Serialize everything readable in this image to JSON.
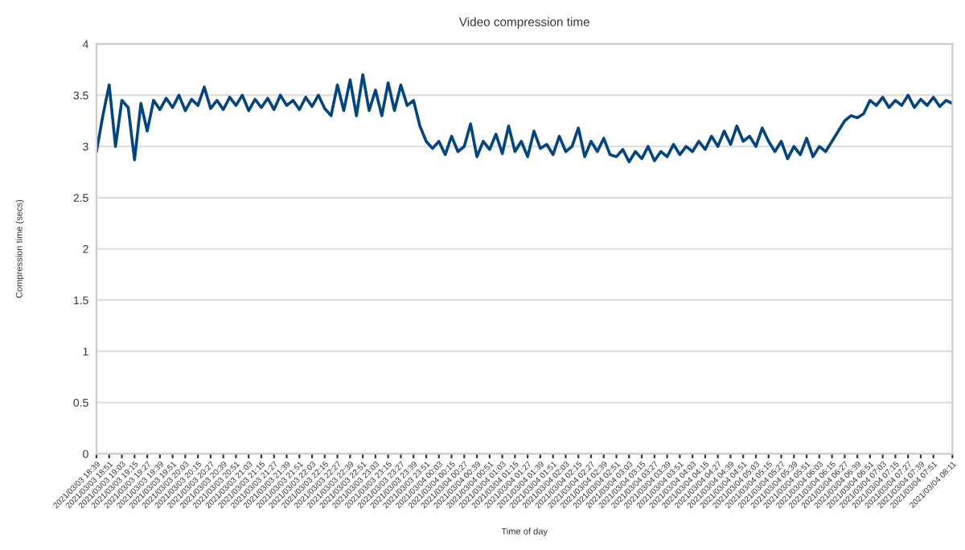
{
  "chart_data": {
    "type": "line",
    "title": "Video compression time",
    "xlabel": "Time of day",
    "ylabel": "Compression time (secs)",
    "ylim": [
      0,
      4
    ],
    "yticks": [
      0,
      0.5,
      1,
      1.5,
      2,
      2.5,
      3,
      3.5,
      4
    ],
    "grid": "y",
    "legend": false,
    "marker": "none",
    "line_style": "solid",
    "categories": [
      "2021/03/03 18:39",
      null,
      "2021/03/03 18:51",
      null,
      "2021/03/03 19:03",
      null,
      "2021/03/03 19:15",
      null,
      "2021/03/03 19:27",
      null,
      "2021/03/03 19:39",
      null,
      "2021/03/03 19:51",
      null,
      "2021/03/03 20:03",
      null,
      "2021/03/03 20:15",
      null,
      "2021/03/03 20:27",
      null,
      "2021/03/03 20:39",
      null,
      "2021/03/03 20:51",
      null,
      "2021/03/03 21:03",
      null,
      "2021/03/03 21:15",
      null,
      "2021/03/03 21:27",
      null,
      "2021/03/03 21:39",
      null,
      "2021/03/03 21:51",
      null,
      "2021/03/03 22:03",
      null,
      "2021/03/03 22:15",
      null,
      "2021/03/03 22:27",
      null,
      "2021/03/03 22:39",
      null,
      "2021/03/03 22:51",
      null,
      "2021/03/03 23:03",
      null,
      "2021/03/03 23:15",
      null,
      "2021/03/03 23:27",
      null,
      "2021/03/03 23:39",
      null,
      "2021/03/03 23:51",
      null,
      "2021/03/04 00:03",
      null,
      "2021/03/04 00:15",
      null,
      "2021/03/04 00:27",
      null,
      "2021/03/04 00:39",
      null,
      "2021/03/04 00:51",
      null,
      "2021/03/04 01:03",
      null,
      "2021/03/04 01:15",
      null,
      "2021/03/04 01:27",
      null,
      "2021/03/04 01:39",
      null,
      "2021/03/04 01:51",
      null,
      "2021/03/04 02:03",
      null,
      "2021/03/04 02:15",
      null,
      "2021/03/04 02:27",
      null,
      "2021/03/04 02:39",
      null,
      "2021/03/04 02:51",
      null,
      "2021/03/04 03:03",
      null,
      "2021/03/04 03:15",
      null,
      "2021/03/04 03:27",
      null,
      "2021/03/04 03:39",
      null,
      "2021/03/04 03:51",
      null,
      "2021/03/04 04:03",
      null,
      "2021/03/04 04:15",
      null,
      "2021/03/04 04:27",
      null,
      "2021/03/04 04:39",
      null,
      "2021/03/04 04:51",
      null,
      "2021/03/04 05:03",
      null,
      "2021/03/04 05:15",
      null,
      "2021/03/04 05:27",
      null,
      "2021/03/04 05:39",
      null,
      "2021/03/04 05:51",
      null,
      "2021/03/04 06:03",
      null,
      "2021/03/04 06:15",
      null,
      "2021/03/04 06:27",
      null,
      "2021/03/04 06:39",
      null,
      "2021/03/04 06:51",
      null,
      "2021/03/04 07:03",
      null,
      "2021/03/04 07:15",
      null,
      "2021/03/04 07:27",
      null,
      "2021/03/04 07:39",
      null,
      "2021/03/04 07:51",
      null,
      null,
      "2021/03/04 08:11"
    ],
    "series": [
      {
        "color": "#004586",
        "values": [
          2.95,
          3.3,
          3.6,
          3.0,
          3.45,
          3.38,
          2.87,
          3.42,
          3.15,
          3.45,
          3.36,
          3.47,
          3.38,
          3.5,
          3.35,
          3.46,
          3.4,
          3.58,
          3.37,
          3.45,
          3.36,
          3.48,
          3.4,
          3.5,
          3.35,
          3.46,
          3.38,
          3.47,
          3.36,
          3.5,
          3.4,
          3.45,
          3.36,
          3.48,
          3.39,
          3.5,
          3.37,
          3.3,
          3.6,
          3.35,
          3.65,
          3.3,
          3.7,
          3.35,
          3.55,
          3.3,
          3.62,
          3.35,
          3.6,
          3.4,
          3.45,
          3.2,
          3.05,
          2.98,
          3.05,
          2.92,
          3.1,
          2.95,
          3.0,
          3.22,
          2.9,
          3.05,
          2.97,
          3.12,
          2.93,
          3.2,
          2.95,
          3.05,
          2.9,
          3.15,
          2.98,
          3.02,
          2.92,
          3.1,
          2.95,
          3.0,
          3.18,
          2.9,
          3.05,
          2.95,
          3.08,
          2.92,
          2.9,
          2.97,
          2.85,
          2.95,
          2.88,
          3.0,
          2.86,
          2.95,
          2.9,
          3.02,
          2.92,
          3.0,
          2.95,
          3.05,
          2.97,
          3.1,
          3.0,
          3.15,
          3.02,
          3.2,
          3.05,
          3.1,
          3.0,
          3.18,
          3.05,
          2.95,
          3.05,
          2.88,
          3.0,
          2.92,
          3.08,
          2.9,
          3.0,
          2.95,
          3.05,
          3.15,
          3.25,
          3.3,
          3.28,
          3.32,
          3.45,
          3.4,
          3.48,
          3.38,
          3.45,
          3.4,
          3.5,
          3.38,
          3.46,
          3.4,
          3.48,
          3.39,
          3.45,
          3.42
        ]
      }
    ]
  }
}
